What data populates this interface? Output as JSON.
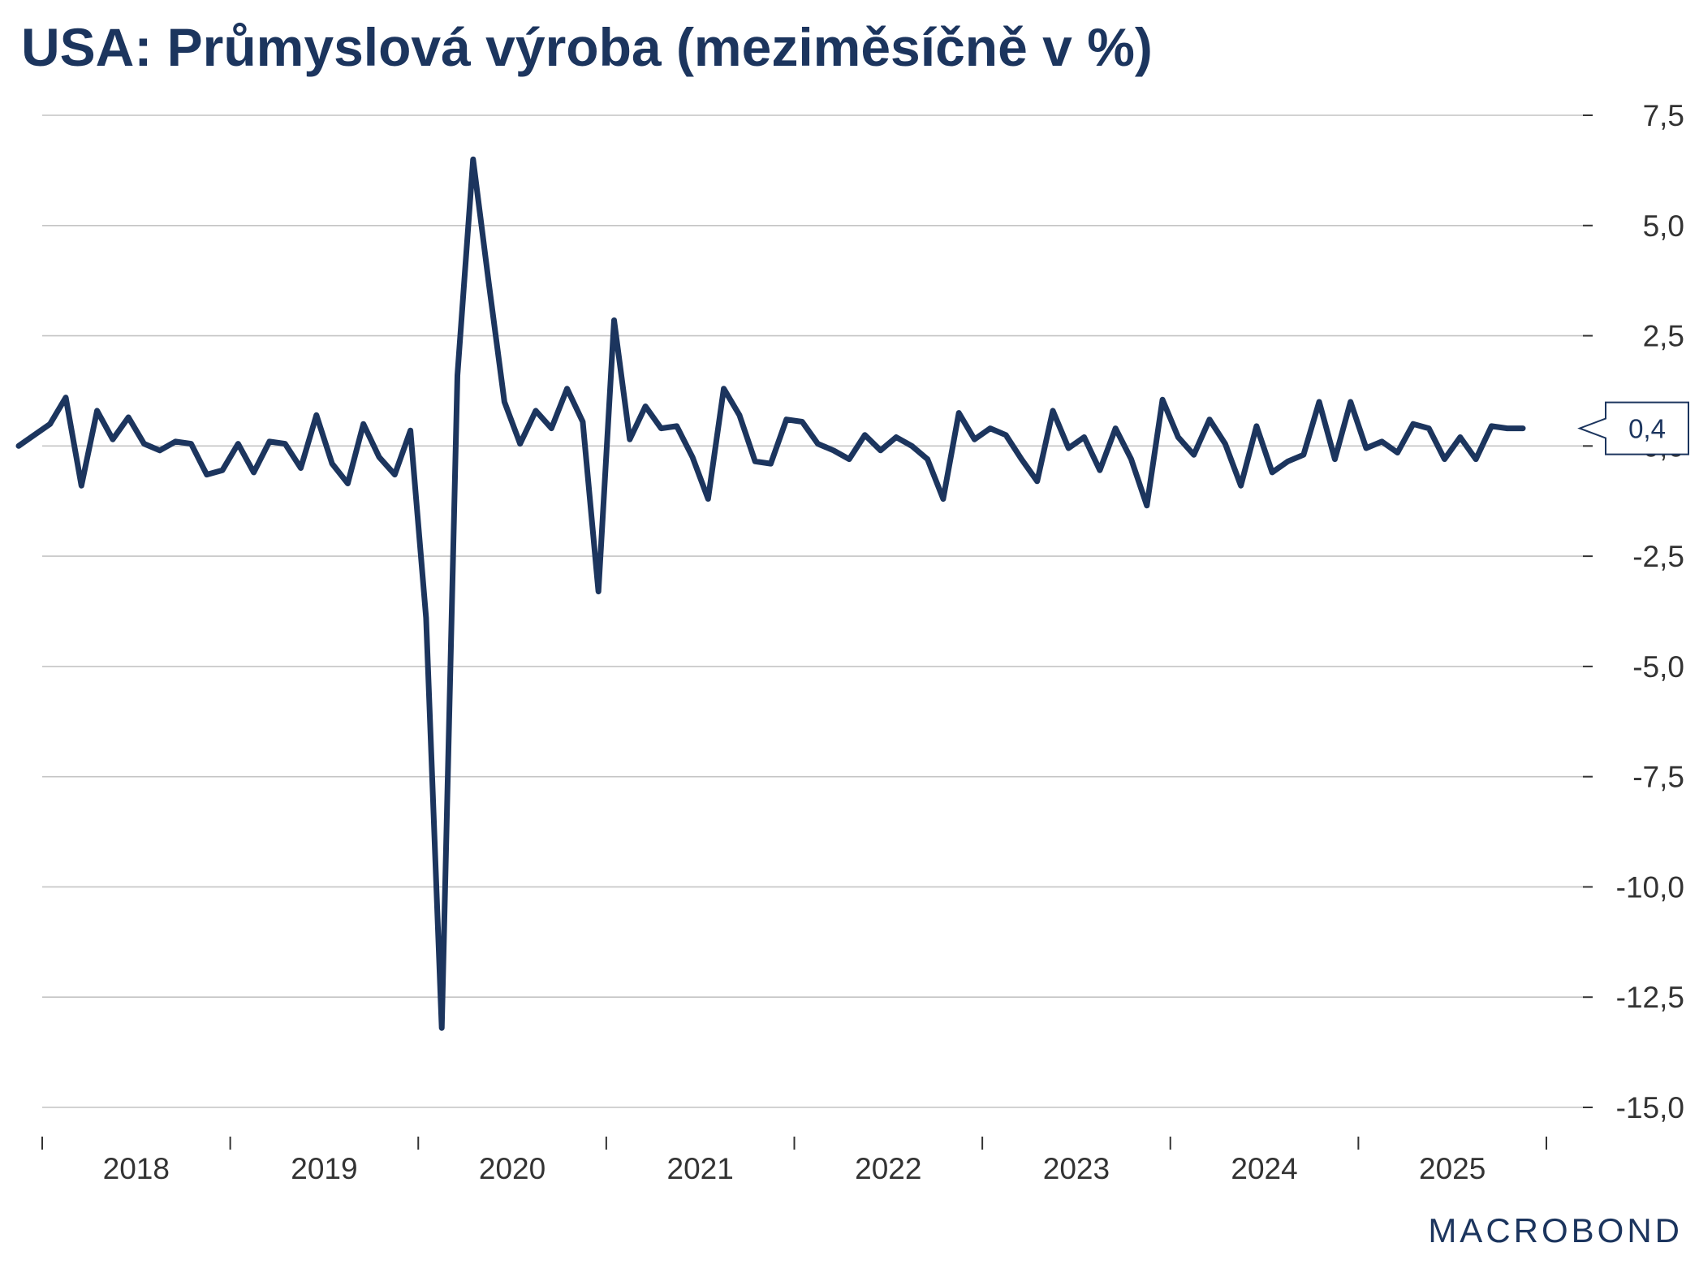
{
  "chart_data": {
    "type": "line",
    "title": "USA: Průmyslová výroba (meziměsíčně v %)",
    "xlabel": "",
    "ylabel": "",
    "ylim": [
      -15,
      7.5
    ],
    "yticks": [
      7.5,
      5,
      2.5,
      0,
      -2.5,
      -5,
      -7.5,
      -10,
      -12.5,
      -15
    ],
    "ytick_labels": [
      "7,5",
      "5,0",
      "2,5",
      "0,0",
      "-2,5",
      "-5,0",
      "-7,5",
      "-10,0",
      "-12,5",
      "-15,0"
    ],
    "x_years": [
      "2018",
      "2019",
      "2020",
      "2021",
      "2022",
      "2023",
      "2024",
      "2025"
    ],
    "x_start": "2018-01",
    "x_end": "2025-12",
    "grid": true,
    "y_axis_position": "right",
    "series": [
      {
        "color": "#1c355e",
        "x": [
          "2017-11",
          "2017-12",
          "2018-01",
          "2018-02",
          "2018-03",
          "2018-04",
          "2018-05",
          "2018-06",
          "2018-07",
          "2018-08",
          "2018-09",
          "2018-10",
          "2018-11",
          "2018-12",
          "2019-01",
          "2019-02",
          "2019-03",
          "2019-04",
          "2019-05",
          "2019-06",
          "2019-07",
          "2019-08",
          "2019-09",
          "2019-10",
          "2019-11",
          "2019-12",
          "2020-01",
          "2020-02",
          "2020-03",
          "2020-04",
          "2020-05",
          "2020-06",
          "2020-07",
          "2020-08",
          "2020-09",
          "2020-10",
          "2020-11",
          "2020-12",
          "2021-01",
          "2021-02",
          "2021-03",
          "2021-04",
          "2021-05",
          "2021-06",
          "2021-07",
          "2021-08",
          "2021-09",
          "2021-10",
          "2021-11",
          "2021-12",
          "2022-01",
          "2022-02",
          "2022-03",
          "2022-04",
          "2022-05",
          "2022-06",
          "2022-07",
          "2022-08",
          "2022-09",
          "2022-10",
          "2022-11",
          "2022-12",
          "2023-01",
          "2023-02",
          "2023-03",
          "2023-04",
          "2023-05",
          "2023-06",
          "2023-07",
          "2023-08",
          "2023-09",
          "2023-10",
          "2023-11",
          "2023-12",
          "2024-01",
          "2024-02",
          "2024-03",
          "2024-04",
          "2024-05",
          "2024-06",
          "2024-07",
          "2024-08",
          "2024-09",
          "2024-10",
          "2024-11",
          "2024-12",
          "2025-01",
          "2025-02",
          "2025-03",
          "2025-04",
          "2025-05",
          "2025-06",
          "2025-07",
          "2025-08",
          "2025-09",
          "2025-10",
          "2025-11"
        ],
        "values": [
          0.0,
          0.25,
          0.5,
          1.1,
          -0.9,
          0.8,
          0.15,
          0.65,
          0.05,
          -0.1,
          0.1,
          0.05,
          -0.65,
          -0.55,
          0.05,
          -0.6,
          0.1,
          0.05,
          -0.5,
          0.7,
          -0.4,
          -0.85,
          0.5,
          -0.25,
          -0.65,
          0.35,
          -3.9,
          -13.2,
          1.6,
          6.5,
          3.7,
          1.0,
          0.05,
          0.8,
          0.4,
          1.3,
          0.55,
          -3.3,
          2.85,
          0.15,
          0.9,
          0.4,
          0.45,
          -0.25,
          -1.2,
          1.3,
          0.7,
          -0.35,
          -0.4,
          0.6,
          0.55,
          0.05,
          -0.1,
          -0.3,
          0.25,
          -0.1,
          0.2,
          0.0,
          -0.3,
          -1.2,
          0.75,
          0.15,
          0.4,
          0.25,
          -0.3,
          -0.8,
          0.8,
          -0.05,
          0.2,
          -0.55,
          0.4,
          -0.3,
          -1.35,
          1.05,
          0.2,
          -0.2,
          0.6,
          0.05,
          -0.9,
          0.45,
          -0.6,
          -0.35,
          -0.2,
          1.0,
          -0.3,
          1.0,
          -0.05,
          0.1,
          -0.15,
          0.5,
          0.4,
          -0.3,
          0.2,
          -0.3,
          0.45,
          0.4,
          0.4
        ],
        "last_value_label": "0,4"
      }
    ]
  },
  "logo": {
    "text": "MACROBOND"
  }
}
